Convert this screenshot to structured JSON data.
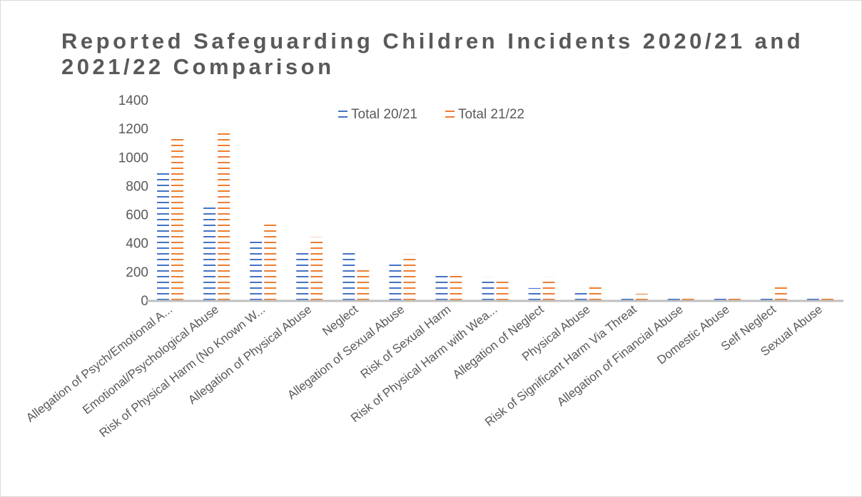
{
  "chart_data": {
    "type": "bar",
    "title": "Reported Safeguarding Children Incidents 2020/21 and 2021/22 Comparison",
    "xlabel": "",
    "ylabel": "",
    "ylim": [
      0,
      1400
    ],
    "yticks": [
      0,
      200,
      400,
      600,
      800,
      1000,
      1200,
      1400
    ],
    "legend_position": "top",
    "grid": false,
    "categories": [
      "Allegation of Psych/Emotional A...",
      "Emotional/Psychological Abuse",
      "Risk of Physical Harm (No Known W...",
      "Allegation of Physical Abuse",
      "Neglect",
      "Allegation of Sexual Abuse",
      "Risk of Sexual Harm",
      "Risk of Physical Harm with Wea...",
      "Allegation of Neglect",
      "Physical Abuse",
      "Risk of Significant Harm Via Threat",
      "Allegation of Financial Abuse",
      "Domestic Abuse",
      "Self Neglect",
      "Sexual Abuse"
    ],
    "series": [
      {
        "name": "Total 20/21",
        "color": "#4472c4",
        "values": [
          900,
          650,
          425,
          350,
          350,
          265,
          175,
          160,
          85,
          80,
          40,
          35,
          35,
          25,
          10
        ]
      },
      {
        "name": "Total 21/22",
        "color": "#ed7d31",
        "values": [
          1145,
          1185,
          555,
          440,
          210,
          320,
          195,
          150,
          160,
          90,
          45,
          20,
          30,
          110,
          25
        ]
      }
    ]
  }
}
